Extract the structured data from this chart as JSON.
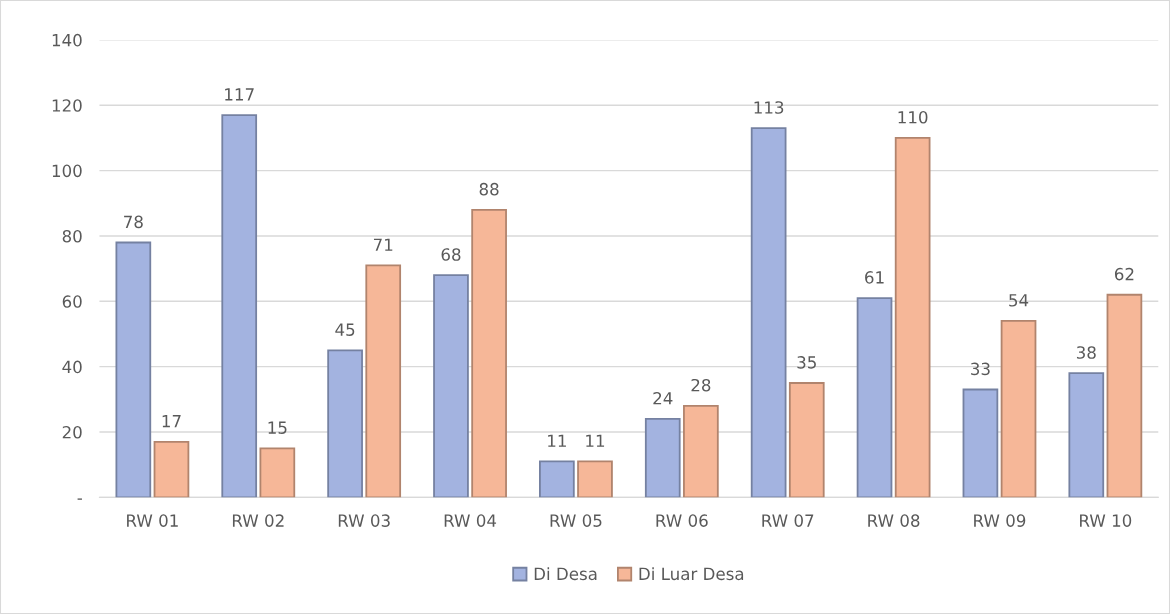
{
  "chart_data": {
    "type": "bar",
    "categories": [
      "RW 01",
      "RW 02",
      "RW 03",
      "RW 04",
      "RW 05",
      "RW 06",
      "RW 07",
      "RW 08",
      "RW 09",
      "RW 10"
    ],
    "series": [
      {
        "name": "Di Desa",
        "color": "#a3b3e0",
        "values": [
          78,
          117,
          45,
          68,
          11,
          24,
          113,
          61,
          33,
          38
        ]
      },
      {
        "name": "Di Luar Desa",
        "color": "#f6b798",
        "values": [
          17,
          15,
          71,
          88,
          11,
          28,
          35,
          110,
          54,
          62
        ]
      }
    ],
    "ylim": [
      0,
      140
    ],
    "yticks": [
      {
        "value": 0,
        "label": "-"
      },
      20,
      40,
      60,
      80,
      100,
      120,
      140
    ],
    "grid": "y",
    "legend": "bottom",
    "data_labels": true
  }
}
